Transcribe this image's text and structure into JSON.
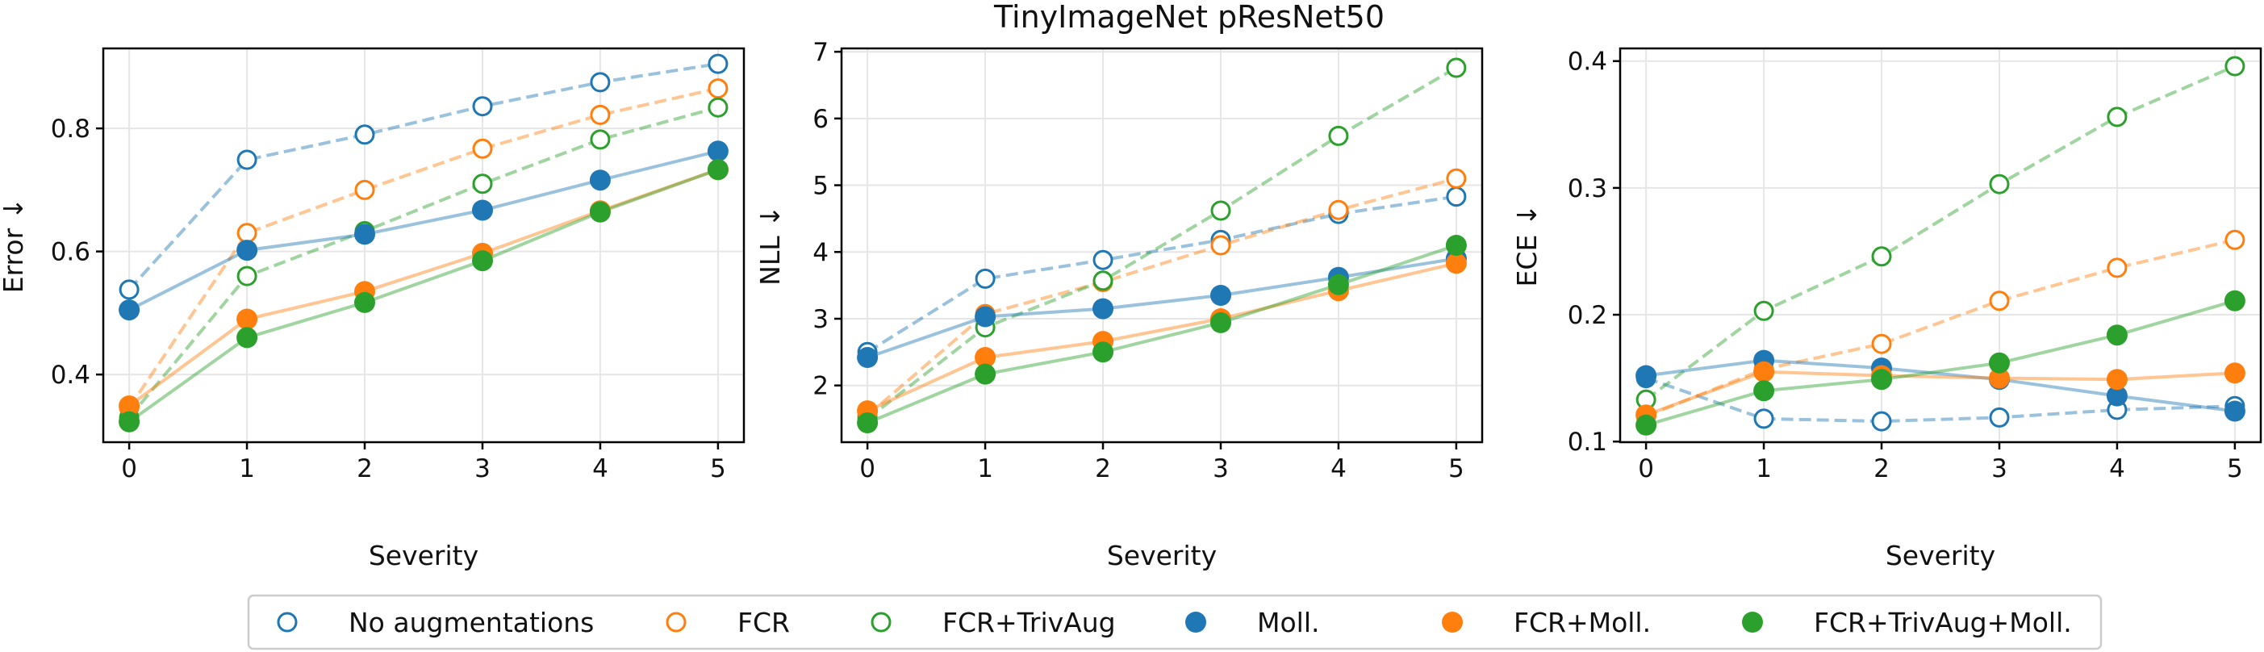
{
  "figure_title": "TinyImageNet pResNet50",
  "colors": {
    "blue": "#1f77b4",
    "orange": "#ff7f0e",
    "green": "#2ca02c"
  },
  "legend": [
    {
      "label": "No augmentations",
      "color": "#1f77b4",
      "marker": "open"
    },
    {
      "label": "FCR",
      "color": "#ff7f0e",
      "marker": "open"
    },
    {
      "label": "FCR+TrivAug",
      "color": "#2ca02c",
      "marker": "open"
    },
    {
      "label": "Moll.",
      "color": "#1f77b4",
      "marker": "filled"
    },
    {
      "label": "FCR+Moll.",
      "color": "#ff7f0e",
      "marker": "filled"
    },
    {
      "label": "FCR+TrivAug+Moll.",
      "color": "#2ca02c",
      "marker": "filled"
    }
  ],
  "chart_data": [
    {
      "type": "line",
      "title": "",
      "xlabel": "Severity",
      "ylabel": "Error ↓",
      "x": [
        0,
        1,
        2,
        3,
        4,
        5
      ],
      "xlim": [
        -0.22,
        5.22
      ],
      "ylim": [
        0.29,
        0.93
      ],
      "xticks": [
        0,
        1,
        2,
        3,
        4,
        5
      ],
      "yticks": [
        0.4,
        0.6,
        0.8
      ],
      "ytick_labels": [
        "0.4",
        "0.6",
        "0.8"
      ],
      "grid": true,
      "series": [
        {
          "name": "No augmentations",
          "color": "#1f77b4",
          "marker": "open",
          "linestyle": "dashed",
          "values": [
            0.538,
            0.749,
            0.79,
            0.836,
            0.875,
            0.905
          ]
        },
        {
          "name": "FCR",
          "color": "#ff7f0e",
          "marker": "open",
          "linestyle": "dashed",
          "values": [
            0.346,
            0.63,
            0.7,
            0.767,
            0.822,
            0.865
          ]
        },
        {
          "name": "FCR+TrivAug",
          "color": "#2ca02c",
          "marker": "open",
          "linestyle": "dashed",
          "values": [
            0.33,
            0.56,
            0.633,
            0.71,
            0.782,
            0.834
          ]
        },
        {
          "name": "Moll.",
          "color": "#1f77b4",
          "marker": "filled",
          "linestyle": "solid",
          "values": [
            0.505,
            0.602,
            0.628,
            0.667,
            0.716,
            0.763
          ]
        },
        {
          "name": "FCR+Moll.",
          "color": "#ff7f0e",
          "marker": "filled",
          "linestyle": "solid",
          "values": [
            0.349,
            0.49,
            0.535,
            0.597,
            0.666,
            0.733
          ]
        },
        {
          "name": "FCR+TrivAug+Moll.",
          "color": "#2ca02c",
          "marker": "filled",
          "linestyle": "solid",
          "values": [
            0.323,
            0.46,
            0.517,
            0.585,
            0.664,
            0.733
          ]
        }
      ]
    },
    {
      "type": "line",
      "title": "",
      "xlabel": "Severity",
      "ylabel": "NLL ↓",
      "x": [
        0,
        1,
        2,
        3,
        4,
        5
      ],
      "xlim": [
        -0.22,
        5.22
      ],
      "ylim": [
        1.15,
        7.05
      ],
      "xticks": [
        0,
        1,
        2,
        3,
        4,
        5
      ],
      "yticks": [
        2,
        3,
        4,
        5,
        6,
        7
      ],
      "ytick_labels": [
        "2",
        "3",
        "4",
        "5",
        "6",
        "7"
      ],
      "grid": true,
      "series": [
        {
          "name": "No augmentations",
          "color": "#1f77b4",
          "marker": "open",
          "linestyle": "dashed",
          "values": [
            2.5,
            3.6,
            3.88,
            4.18,
            4.57,
            4.83
          ]
        },
        {
          "name": "FCR",
          "color": "#ff7f0e",
          "marker": "open",
          "linestyle": "dashed",
          "values": [
            1.55,
            3.07,
            3.55,
            4.1,
            4.63,
            5.1
          ]
        },
        {
          "name": "FCR+TrivAug",
          "color": "#2ca02c",
          "marker": "open",
          "linestyle": "dashed",
          "values": [
            1.5,
            2.87,
            3.57,
            4.62,
            5.74,
            6.76
          ]
        },
        {
          "name": "Moll.",
          "color": "#1f77b4",
          "marker": "filled",
          "linestyle": "solid",
          "values": [
            2.42,
            3.03,
            3.15,
            3.35,
            3.62,
            3.9
          ]
        },
        {
          "name": "FCR+Moll.",
          "color": "#ff7f0e",
          "marker": "filled",
          "linestyle": "solid",
          "values": [
            1.62,
            2.42,
            2.66,
            3.0,
            3.42,
            3.83
          ]
        },
        {
          "name": "FCR+TrivAug+Moll.",
          "color": "#2ca02c",
          "marker": "filled",
          "linestyle": "solid",
          "values": [
            1.44,
            2.17,
            2.5,
            2.94,
            3.51,
            4.1
          ]
        }
      ]
    },
    {
      "type": "line",
      "title": "",
      "xlabel": "Severity",
      "ylabel": "ECE ↓",
      "x": [
        0,
        1,
        2,
        3,
        4,
        5
      ],
      "xlim": [
        -0.22,
        5.22
      ],
      "ylim": [
        0.0995,
        0.41
      ],
      "xticks": [
        0,
        1,
        2,
        3,
        4,
        5
      ],
      "yticks": [
        0.1,
        0.2,
        0.3,
        0.4
      ],
      "ytick_labels": [
        "0.1",
        "0.2",
        "0.3",
        "0.4"
      ],
      "grid": true,
      "series": [
        {
          "name": "No augmentations",
          "color": "#1f77b4",
          "marker": "open",
          "linestyle": "dashed",
          "values": [
            0.15,
            0.118,
            0.116,
            0.119,
            0.125,
            0.128
          ]
        },
        {
          "name": "FCR",
          "color": "#ff7f0e",
          "marker": "open",
          "linestyle": "dashed",
          "values": [
            0.12,
            0.157,
            0.177,
            0.211,
            0.237,
            0.259
          ]
        },
        {
          "name": "FCR+TrivAug",
          "color": "#2ca02c",
          "marker": "open",
          "linestyle": "dashed",
          "values": [
            0.133,
            0.203,
            0.246,
            0.303,
            0.356,
            0.396
          ]
        },
        {
          "name": "Moll.",
          "color": "#1f77b4",
          "marker": "filled",
          "linestyle": "solid",
          "values": [
            0.152,
            0.164,
            0.158,
            0.149,
            0.136,
            0.124
          ]
        },
        {
          "name": "FCR+Moll.",
          "color": "#ff7f0e",
          "marker": "filled",
          "linestyle": "solid",
          "values": [
            0.121,
            0.155,
            0.152,
            0.15,
            0.149,
            0.154
          ]
        },
        {
          "name": "FCR+TrivAug+Moll.",
          "color": "#2ca02c",
          "marker": "filled",
          "linestyle": "solid",
          "values": [
            0.113,
            0.14,
            0.149,
            0.162,
            0.184,
            0.211
          ]
        }
      ]
    }
  ]
}
